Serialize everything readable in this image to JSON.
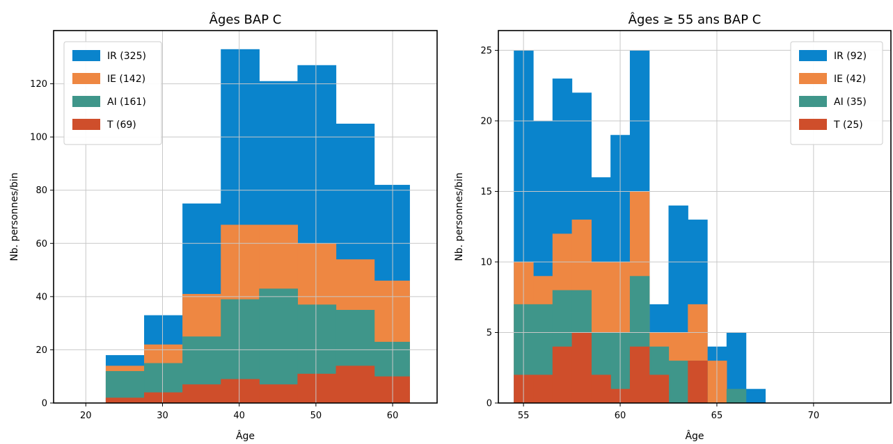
{
  "colors": {
    "IR": "#0a84cc",
    "IE": "#ee8742",
    "AI": "#3f968a",
    "T": "#cf4e2b"
  },
  "chart_data": [
    {
      "type": "bar",
      "stacked": true,
      "title": "Âges BAP C",
      "xlabel": "Âge",
      "ylabel": "Nb. personnes/bin",
      "xlim": [
        15.8,
        65.8
      ],
      "ylim": [
        0,
        140
      ],
      "xticks": [
        20,
        30,
        40,
        50,
        60
      ],
      "yticks": [
        0,
        20,
        40,
        60,
        80,
        100,
        120
      ],
      "grid": true,
      "legend_position": "top-left",
      "bin_edges": [
        22.6,
        27.6,
        32.6,
        37.6,
        42.6,
        47.6,
        52.6,
        57.6,
        62.2
      ],
      "series": [
        {
          "name": "IR (325)",
          "key": "IR",
          "cumulative": [
            18,
            33,
            75,
            133,
            121,
            127,
            105,
            82
          ]
        },
        {
          "name": "IE (142)",
          "key": "IE",
          "cumulative": [
            14,
            22,
            41,
            67,
            67,
            60,
            54,
            46
          ]
        },
        {
          "name": "AI (161)",
          "key": "AI",
          "cumulative": [
            12,
            15,
            25,
            39,
            43,
            37,
            35,
            23
          ]
        },
        {
          "name": "T (69)",
          "key": "T",
          "cumulative": [
            2,
            4,
            7,
            9,
            7,
            11,
            14,
            10
          ]
        }
      ]
    },
    {
      "type": "bar",
      "stacked": true,
      "title": "Âges ≥ 55 ans BAP C",
      "xlabel": "Âge",
      "ylabel": "Nb. personnes/bin",
      "xlim": [
        53.7,
        74.0
      ],
      "ylim": [
        0,
        26.4
      ],
      "xticks": [
        55,
        60,
        65,
        70
      ],
      "yticks": [
        0,
        5,
        10,
        15,
        20,
        25
      ],
      "grid": true,
      "legend_position": "top-right",
      "bin_edges": [
        54.5,
        55.5,
        56.5,
        57.5,
        58.5,
        59.5,
        60.5,
        61.5,
        62.5,
        63.5,
        64.5,
        65.5,
        66.5,
        67.5
      ],
      "series": [
        {
          "name": "IR (92)",
          "key": "IR",
          "cumulative": [
            25,
            20,
            23,
            22,
            16,
            19,
            25,
            7,
            14,
            13,
            4,
            5,
            1
          ]
        },
        {
          "name": "IE (42)",
          "key": "IE",
          "cumulative": [
            10,
            9,
            12,
            13,
            10,
            10,
            15,
            5,
            5,
            7,
            3,
            0,
            0
          ]
        },
        {
          "name": "AI (35)",
          "key": "AI",
          "cumulative": [
            7,
            7,
            8,
            8,
            5,
            5,
            9,
            4,
            3,
            3,
            0,
            1,
            0
          ]
        },
        {
          "name": "T (25)",
          "key": "T",
          "cumulative": [
            2,
            2,
            4,
            5,
            2,
            1,
            4,
            2,
            0,
            3,
            0,
            0,
            0
          ]
        }
      ]
    }
  ]
}
